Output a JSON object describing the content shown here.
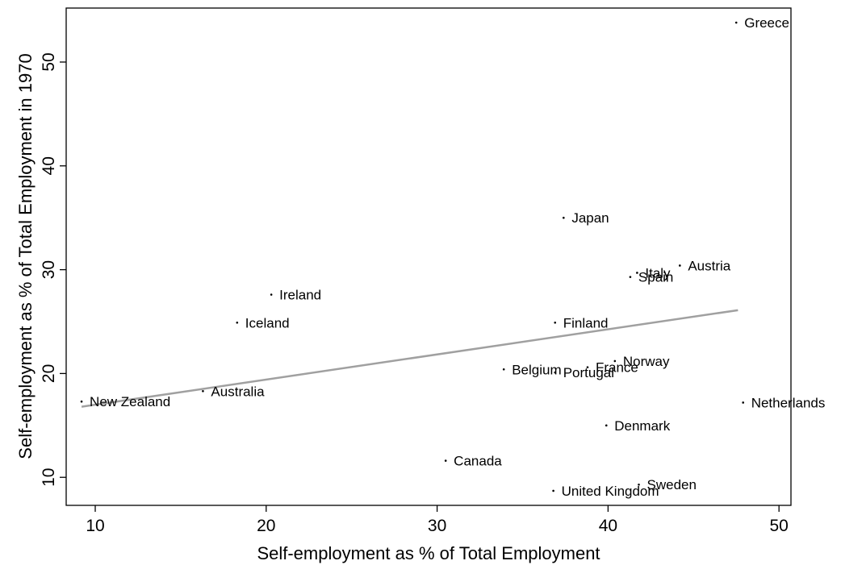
{
  "chart_data": {
    "type": "scatter",
    "title": "",
    "xlabel": "Self-employment as % of Total Employment",
    "ylabel": "Self-employment as % of Total Employment in 1970",
    "xlim": [
      8.3,
      50.7
    ],
    "ylim": [
      7.3,
      55.2
    ],
    "x_ticks": [
      10,
      20,
      30,
      40,
      50
    ],
    "y_ticks": [
      10,
      20,
      30,
      40,
      50
    ],
    "grid": false,
    "legend": "none",
    "point_color": "#000000",
    "fit_line_color": "#a0a0a0",
    "points": [
      {
        "label": "Greece",
        "x": 47.5,
        "y": 53.8
      },
      {
        "label": "Japan",
        "x": 37.4,
        "y": 35.0
      },
      {
        "label": "Austria",
        "x": 44.2,
        "y": 30.4
      },
      {
        "label": "Italy",
        "x": 41.7,
        "y": 29.7
      },
      {
        "label": "Spain",
        "x": 41.3,
        "y": 29.3
      },
      {
        "label": "Ireland",
        "x": 20.3,
        "y": 27.6
      },
      {
        "label": "Iceland",
        "x": 18.3,
        "y": 24.9
      },
      {
        "label": "Finland",
        "x": 36.9,
        "y": 24.9
      },
      {
        "label": "Norway",
        "x": 40.4,
        "y": 21.2
      },
      {
        "label": "France",
        "x": 38.8,
        "y": 20.6
      },
      {
        "label": "Portugal",
        "x": 36.9,
        "y": 20.1
      },
      {
        "label": "Belgium",
        "x": 33.9,
        "y": 20.4
      },
      {
        "label": "Australia",
        "x": 16.3,
        "y": 18.3
      },
      {
        "label": "New Zealand",
        "x": 9.2,
        "y": 17.3
      },
      {
        "label": "Netherlands",
        "x": 47.9,
        "y": 17.2
      },
      {
        "label": "Denmark",
        "x": 39.9,
        "y": 15.0
      },
      {
        "label": "Canada",
        "x": 30.5,
        "y": 11.6
      },
      {
        "label": "Sweden",
        "x": 41.8,
        "y": 9.3
      },
      {
        "label": "United Kingdom",
        "x": 36.8,
        "y": 8.7
      }
    ],
    "fit_line": {
      "x": [
        9.2,
        47.6
      ],
      "y": [
        16.8,
        26.1
      ]
    }
  }
}
